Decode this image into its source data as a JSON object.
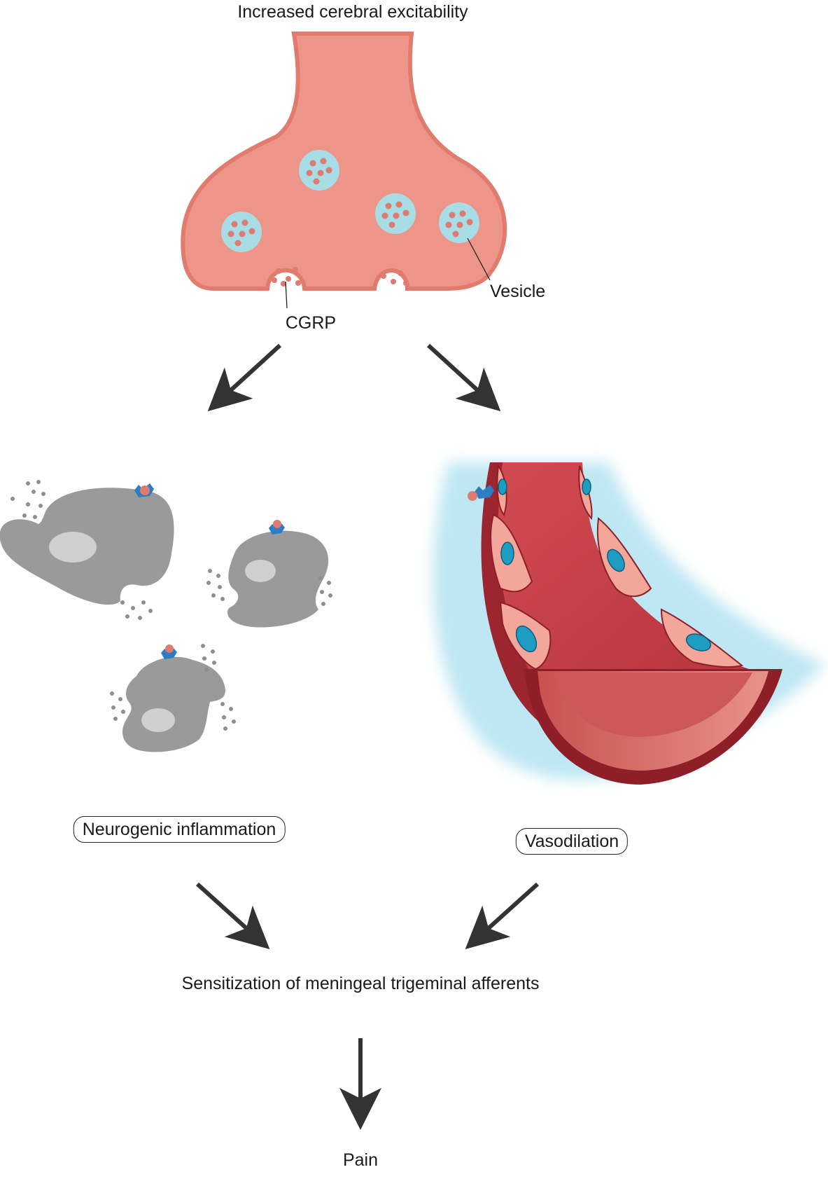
{
  "labels": {
    "top_title": "Increased cerebral excitability",
    "cgrp": "CGRP",
    "vesicle": "Vesicle",
    "neurogenic_inflammation": "Neurogenic inflammation",
    "vasodilation": "Vasodilation",
    "sensitization": "Sensitization of meningeal trigeminal afferents",
    "pain": "Pain"
  },
  "colors": {
    "neuron_body": "#EE9589",
    "neuron_edge": "#E07B6E",
    "vesicle_fill": "#A8DDE6",
    "vesicle_dots": "#DD7A72",
    "cell_gray": "#9A9A9A",
    "cell_nucleus": "#D0D0D0",
    "receptor_blue": "#2E7CC4",
    "vessel_red": "#C8424A",
    "vessel_dark": "#8E1E28",
    "endothelial": "#F3A79A",
    "endo_nucleus": "#1F9CC2",
    "glow_blue": "#A9DFF0",
    "arrow": "#333333"
  }
}
